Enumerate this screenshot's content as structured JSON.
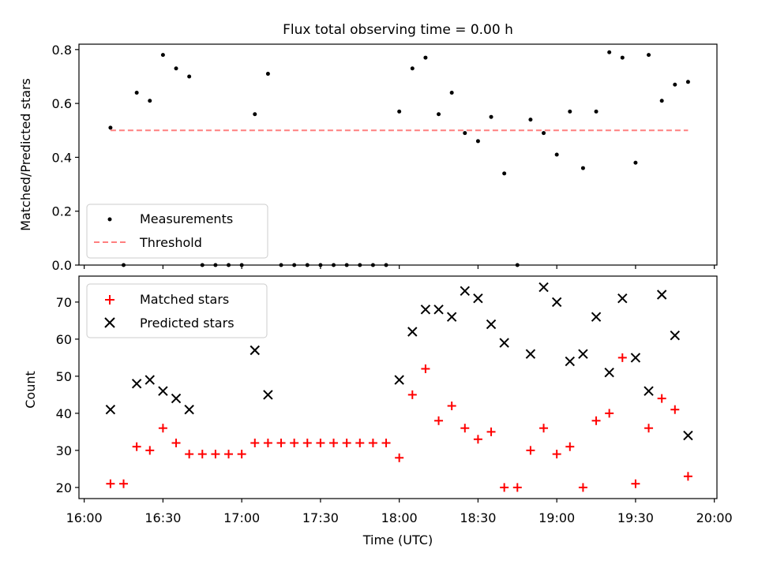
{
  "title": "Flux total observing time = 0.00 h",
  "colors": {
    "measurement": "#000000",
    "threshold": "#ff7f7f",
    "matched": "#ff0000",
    "predicted": "#000000"
  },
  "chart_data": [
    {
      "type": "scatter",
      "ylabel": "Matched/Predicted stars",
      "ylim": [
        0,
        0.82
      ],
      "yticks": [
        "0.0",
        "0.2",
        "0.4",
        "0.6",
        "0.8"
      ],
      "xlim_minutes": [
        958,
        1201
      ],
      "grid": false,
      "legend_position": "lower-left",
      "legend": [
        {
          "label": "Measurements",
          "marker": "dot"
        },
        {
          "label": "Threshold",
          "marker": "dashed-line"
        }
      ],
      "threshold": {
        "y": 0.5,
        "x_range": [
          "16:10",
          "19:50"
        ]
      },
      "series": [
        {
          "name": "Measurements",
          "points": [
            [
              "16:10",
              0.51
            ],
            [
              "16:15",
              0.0
            ],
            [
              "16:20",
              0.64
            ],
            [
              "16:25",
              0.61
            ],
            [
              "16:30",
              0.78
            ],
            [
              "16:35",
              0.73
            ],
            [
              "16:40",
              0.7
            ],
            [
              "16:45",
              0.0
            ],
            [
              "16:50",
              0.0
            ],
            [
              "16:55",
              0.0
            ],
            [
              "17:00",
              0.0
            ],
            [
              "17:05",
              0.56
            ],
            [
              "17:10",
              0.71
            ],
            [
              "17:15",
              0.0
            ],
            [
              "17:20",
              0.0
            ],
            [
              "17:25",
              0.0
            ],
            [
              "17:30",
              0.0
            ],
            [
              "17:35",
              0.0
            ],
            [
              "17:40",
              0.0
            ],
            [
              "17:45",
              0.0
            ],
            [
              "17:50",
              0.0
            ],
            [
              "17:55",
              0.0
            ],
            [
              "18:00",
              0.57
            ],
            [
              "18:05",
              0.73
            ],
            [
              "18:10",
              0.77
            ],
            [
              "18:15",
              0.56
            ],
            [
              "18:20",
              0.64
            ],
            [
              "18:25",
              0.49
            ],
            [
              "18:30",
              0.46
            ],
            [
              "18:35",
              0.55
            ],
            [
              "18:40",
              0.34
            ],
            [
              "18:45",
              0.0
            ],
            [
              "18:50",
              0.54
            ],
            [
              "18:55",
              0.49
            ],
            [
              "19:00",
              0.41
            ],
            [
              "19:05",
              0.57
            ],
            [
              "19:10",
              0.36
            ],
            [
              "19:15",
              0.57
            ],
            [
              "19:20",
              0.79
            ],
            [
              "19:25",
              0.77
            ],
            [
              "19:30",
              0.38
            ],
            [
              "19:35",
              0.78
            ],
            [
              "19:40",
              0.61
            ],
            [
              "19:45",
              0.67
            ],
            [
              "19:50",
              0.68
            ]
          ]
        }
      ]
    },
    {
      "type": "scatter",
      "xlabel": "Time (UTC)",
      "ylabel": "Count",
      "ylim": [
        17,
        77
      ],
      "yticks": [
        "20",
        "30",
        "40",
        "50",
        "60",
        "70"
      ],
      "xticks": [
        "16:00",
        "16:30",
        "17:00",
        "17:30",
        "18:00",
        "18:30",
        "19:00",
        "19:30",
        "20:00"
      ],
      "xlim_minutes": [
        958,
        1201
      ],
      "grid": false,
      "legend_position": "upper-left",
      "series": [
        {
          "name": "Matched stars",
          "marker": "plus",
          "points": [
            [
              "16:10",
              21
            ],
            [
              "16:15",
              21
            ],
            [
              "16:20",
              31
            ],
            [
              "16:25",
              30
            ],
            [
              "16:30",
              36
            ],
            [
              "16:35",
              32
            ],
            [
              "16:40",
              29
            ],
            [
              "16:45",
              29
            ],
            [
              "16:50",
              29
            ],
            [
              "16:55",
              29
            ],
            [
              "17:00",
              29
            ],
            [
              "17:05",
              32
            ],
            [
              "17:10",
              32
            ],
            [
              "17:15",
              32
            ],
            [
              "17:20",
              32
            ],
            [
              "17:25",
              32
            ],
            [
              "17:30",
              32
            ],
            [
              "17:35",
              32
            ],
            [
              "17:40",
              32
            ],
            [
              "17:45",
              32
            ],
            [
              "17:50",
              32
            ],
            [
              "17:55",
              32
            ],
            [
              "18:00",
              28
            ],
            [
              "18:05",
              45
            ],
            [
              "18:10",
              52
            ],
            [
              "18:15",
              38
            ],
            [
              "18:20",
              42
            ],
            [
              "18:25",
              36
            ],
            [
              "18:30",
              33
            ],
            [
              "18:35",
              35
            ],
            [
              "18:40",
              20
            ],
            [
              "18:45",
              20
            ],
            [
              "18:50",
              30
            ],
            [
              "18:55",
              36
            ],
            [
              "19:00",
              29
            ],
            [
              "19:05",
              31
            ],
            [
              "19:10",
              20
            ],
            [
              "19:15",
              38
            ],
            [
              "19:20",
              40
            ],
            [
              "19:25",
              55
            ],
            [
              "19:30",
              21
            ],
            [
              "19:35",
              36
            ],
            [
              "19:40",
              44
            ],
            [
              "19:45",
              41
            ],
            [
              "19:50",
              23
            ]
          ]
        },
        {
          "name": "Predicted stars",
          "marker": "x",
          "points": [
            [
              "16:10",
              41
            ],
            [
              "16:20",
              48
            ],
            [
              "16:25",
              49
            ],
            [
              "16:30",
              46
            ],
            [
              "16:35",
              44
            ],
            [
              "16:40",
              41
            ],
            [
              "17:05",
              57
            ],
            [
              "17:10",
              45
            ],
            [
              "18:00",
              49
            ],
            [
              "18:05",
              62
            ],
            [
              "18:10",
              68
            ],
            [
              "18:15",
              68
            ],
            [
              "18:20",
              66
            ],
            [
              "18:25",
              73
            ],
            [
              "18:30",
              71
            ],
            [
              "18:35",
              64
            ],
            [
              "18:40",
              59
            ],
            [
              "18:50",
              56
            ],
            [
              "18:55",
              74
            ],
            [
              "19:00",
              70
            ],
            [
              "19:05",
              54
            ],
            [
              "19:10",
              56
            ],
            [
              "19:15",
              66
            ],
            [
              "19:20",
              51
            ],
            [
              "19:25",
              71
            ],
            [
              "19:30",
              55
            ],
            [
              "19:35",
              46
            ],
            [
              "19:40",
              72
            ],
            [
              "19:45",
              61
            ],
            [
              "19:50",
              34
            ]
          ]
        }
      ]
    }
  ]
}
